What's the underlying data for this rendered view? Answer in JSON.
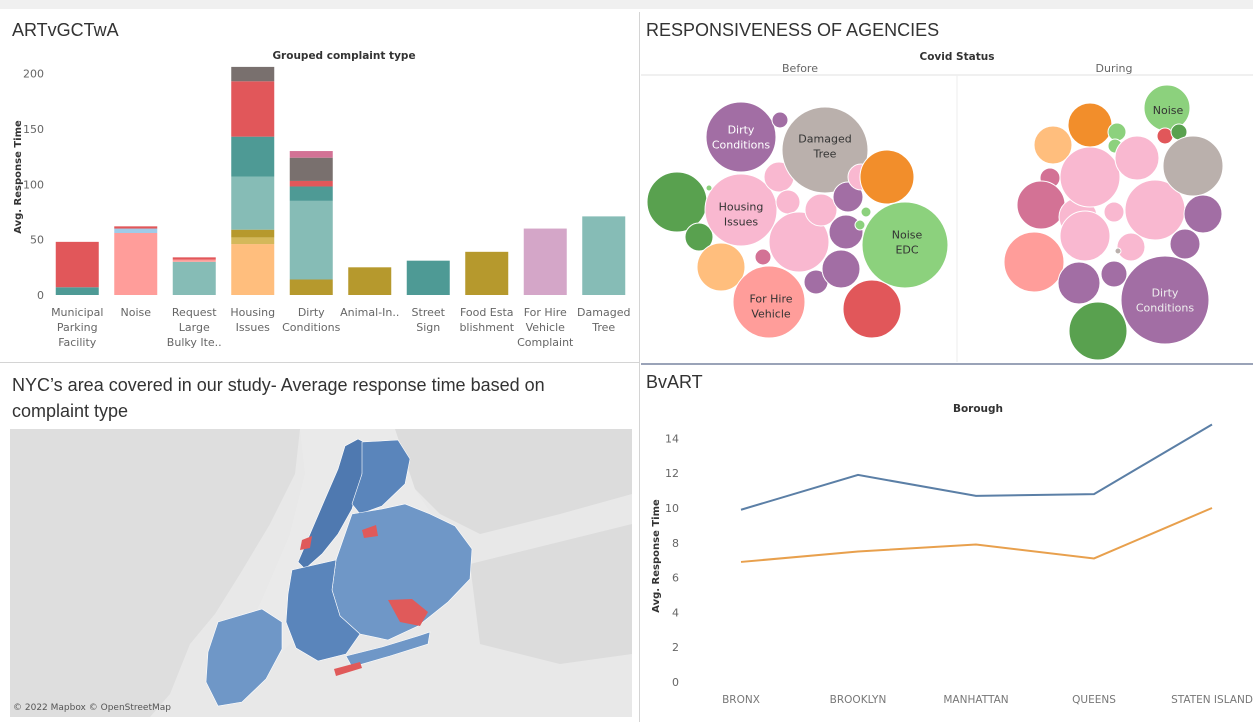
{
  "colors": {
    "parking_red": "#e1575a",
    "teal_dark": "#4e9a95",
    "noise_pink": "#ff9d9a",
    "light_teal": "#86bcb6",
    "light_blue": "#a0cbe8",
    "gold": "#b6992d",
    "peach": "#ffbe7d",
    "slate": "#79706e",
    "rose": "#d37295",
    "lilac": "#d4a6c8",
    "line_blue": "#5b7fa6",
    "line_orange": "#e8a04d",
    "map_blue": "#6f97c7",
    "map_red": "#e05a5a"
  },
  "panel1": {
    "title": "ARTvGCTwA"
  },
  "panel2": {
    "title": "RESPONSIVENESS OF AGENCIES",
    "header": "Covid Status",
    "columns": [
      "Before",
      "During"
    ],
    "bubble_labels": [
      {
        "id": "b-dirty",
        "lines": [
          "Dirty",
          "Conditions"
        ]
      },
      {
        "id": "b-damaged",
        "lines": [
          "Damaged",
          "Tree"
        ]
      },
      {
        "id": "b-housing",
        "lines": [
          "Housing",
          "Issues"
        ]
      },
      {
        "id": "b-noiseedc",
        "lines": [
          "Noise",
          "EDC"
        ]
      },
      {
        "id": "b-forhire",
        "lines": [
          "For Hire",
          "Vehicle"
        ]
      },
      {
        "id": "d-noise",
        "lines": [
          "Noise"
        ]
      },
      {
        "id": "d-dirty",
        "lines": [
          "Dirty",
          "Conditions"
        ]
      }
    ]
  },
  "panel3": {
    "title": "NYC’s area covered in our study- Average response time based on complaint type",
    "credit": "© 2022 Mapbox © OpenStreetMap"
  },
  "panel4": {
    "title": "BvART"
  },
  "chart_data": [
    {
      "type": "bar",
      "stacked": true,
      "title": "Grouped complaint type",
      "ylabel": "Avg. Response Time",
      "ylim": [
        0,
        210
      ],
      "yticks": [
        0,
        50,
        100,
        150,
        200
      ],
      "categories": [
        [
          "Municipal",
          "Parking",
          "Facility"
        ],
        [
          "Noise"
        ],
        [
          "Request",
          "Large",
          "Bulky Ite.."
        ],
        [
          "Housing",
          "Issues"
        ],
        [
          "Dirty",
          "Conditions"
        ],
        [
          "Animal-In.."
        ],
        [
          "Street",
          "Sign"
        ],
        [
          "Food Esta",
          "blishment"
        ],
        [
          "For Hire",
          "Vehicle",
          "Complaint"
        ],
        [
          "Damaged",
          "Tree"
        ]
      ],
      "stacks": [
        [
          {
            "value": 7,
            "color": "#4e9a95"
          },
          {
            "value": 41,
            "color": "#e1575a"
          }
        ],
        [
          {
            "value": 56,
            "color": "#ff9d9a"
          },
          {
            "value": 4,
            "color": "#a0cbe8"
          },
          {
            "value": 2,
            "color": "#e1575a"
          }
        ],
        [
          {
            "value": 30,
            "color": "#86bcb6"
          },
          {
            "value": 2,
            "color": "#ff9d9a"
          },
          {
            "value": 2,
            "color": "#e1575a"
          }
        ],
        [
          {
            "value": 46,
            "color": "#ffbe7d"
          },
          {
            "value": 6,
            "color": "#d4b85a"
          },
          {
            "value": 7,
            "color": "#b6992d"
          },
          {
            "value": 48,
            "color": "#86bcb6"
          },
          {
            "value": 36,
            "color": "#4e9a95"
          },
          {
            "value": 50,
            "color": "#e1575a"
          },
          {
            "value": 13,
            "color": "#79706e"
          }
        ],
        [
          {
            "value": 14,
            "color": "#b6992d"
          },
          {
            "value": 71,
            "color": "#86bcb6"
          },
          {
            "value": 13,
            "color": "#4e9a95"
          },
          {
            "value": 5,
            "color": "#e1575a"
          },
          {
            "value": 21,
            "color": "#79706e"
          },
          {
            "value": 6,
            "color": "#d37295"
          }
        ],
        [
          {
            "value": 25,
            "color": "#b6992d"
          }
        ],
        [
          {
            "value": 31,
            "color": "#4e9a95"
          }
        ],
        [
          {
            "value": 39,
            "color": "#b6992d"
          }
        ],
        [
          {
            "value": 60,
            "color": "#d4a6c8"
          }
        ],
        [
          {
            "value": 71,
            "color": "#86bcb6"
          }
        ]
      ]
    },
    {
      "type": "line",
      "title": "Borough",
      "ylabel": "Avg. Response Time",
      "ylim": [
        0,
        15
      ],
      "yticks": [
        0,
        2,
        4,
        6,
        8,
        10,
        12,
        14
      ],
      "categories": [
        "BRONX",
        "BROOKLYN",
        "MANHATTAN",
        "QUEENS",
        "STATEN ISLAND"
      ],
      "series": [
        {
          "values": [
            9.9,
            11.9,
            10.7,
            10.8,
            14.8
          ],
          "color": "#5b7fa6"
        },
        {
          "values": [
            6.9,
            7.5,
            7.9,
            7.1,
            10.0
          ],
          "color": "#e8a04d"
        }
      ]
    }
  ]
}
